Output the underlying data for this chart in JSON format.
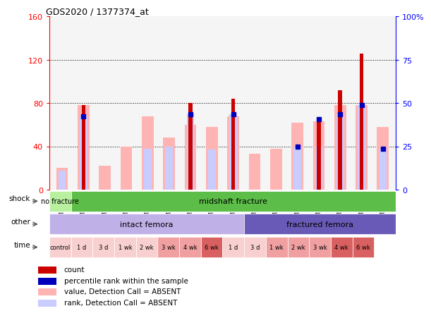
{
  "title": "GDS2020 / 1377374_at",
  "samples": [
    "GSM74213",
    "GSM74214",
    "GSM74215",
    "GSM74217",
    "GSM74219",
    "GSM74221",
    "GSM74223",
    "GSM74225",
    "GSM74227",
    "GSM74216",
    "GSM74218",
    "GSM74220",
    "GSM74222",
    "GSM74224",
    "GSM74226",
    "GSM74228"
  ],
  "count_values": [
    0,
    78,
    0,
    0,
    0,
    0,
    80,
    0,
    84,
    0,
    0,
    0,
    63,
    92,
    126,
    0
  ],
  "absent_value_bars": [
    20,
    78,
    22,
    40,
    68,
    48,
    60,
    58,
    68,
    33,
    38,
    62,
    63,
    78,
    78,
    58
  ],
  "absent_rank_bars": [
    18,
    68,
    0,
    0,
    38,
    40,
    70,
    37,
    70,
    0,
    0,
    40,
    40,
    70,
    78,
    38
  ],
  "rank_dot_values": [
    18,
    68,
    0,
    0,
    0,
    0,
    70,
    0,
    70,
    0,
    0,
    40,
    65,
    70,
    78,
    38
  ],
  "has_rank_dot": [
    false,
    true,
    false,
    false,
    false,
    false,
    true,
    false,
    true,
    false,
    false,
    true,
    true,
    true,
    true,
    true
  ],
  "ylim_left": [
    0,
    160
  ],
  "left_ticks": [
    0,
    40,
    80,
    120,
    160
  ],
  "right_ticks": [
    0,
    25,
    50,
    75,
    100
  ],
  "color_count": "#cc0000",
  "color_rank_dot": "#0000bb",
  "color_absent_value": "#ffb4b4",
  "color_absent_rank": "#c8ccff",
  "bg_color": "#ffffff",
  "plot_bg": "#f5f5f5",
  "shock_colors": [
    "#b8f0a0",
    "#5cbe48"
  ],
  "other_colors": [
    "#c0b0e8",
    "#6a5ab8"
  ],
  "time_colors": [
    "#f8d0d0",
    "#f8d0d0",
    "#f8d0d0",
    "#f8d0d0",
    "#f8d0d0",
    "#f0a0a0",
    "#f0a0a0",
    "#d86060",
    "#f8d0d0",
    "#f8d0d0",
    "#f0a0a0",
    "#f0a0a0",
    "#f0a0a0",
    "#d86060",
    "#d86060"
  ],
  "time_labels": [
    "control",
    "1 d",
    "3 d",
    "1 wk",
    "2 wk",
    "3 wk",
    "4 wk",
    "6 wk",
    "1 d",
    "3 d",
    "1 wk",
    "2 wk",
    "3 wk",
    "4 wk",
    "6 wk"
  ]
}
